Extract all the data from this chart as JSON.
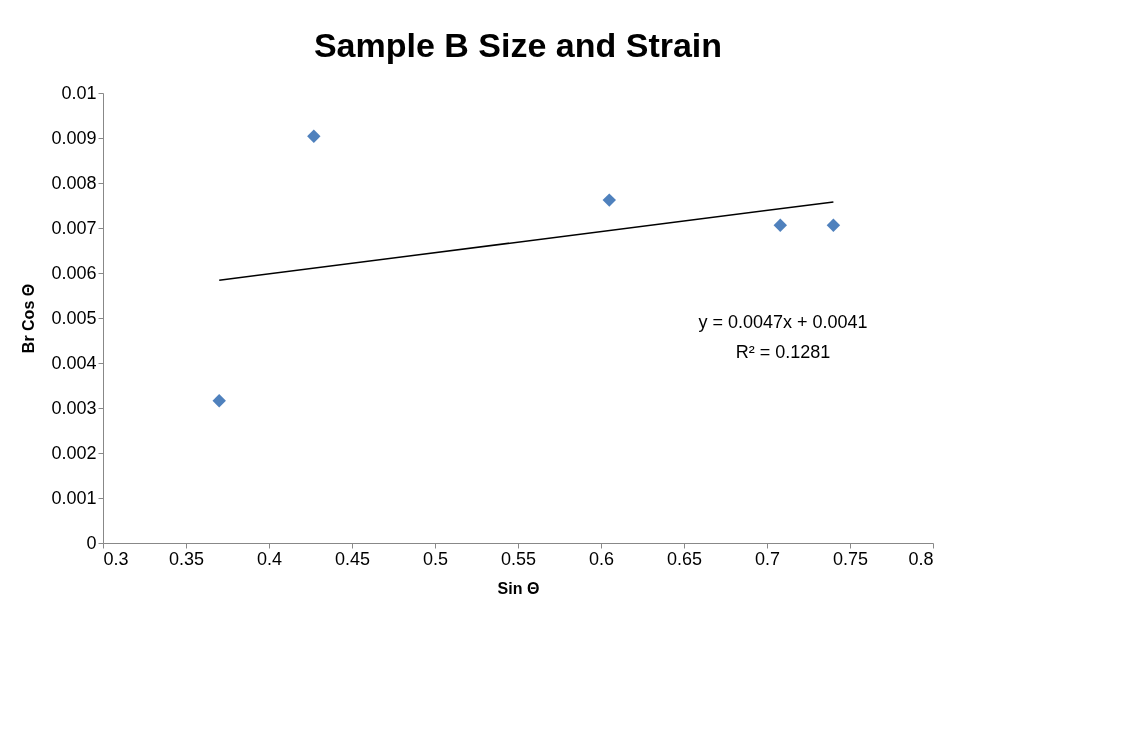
{
  "chart_data": {
    "type": "scatter",
    "title": "Sample B Size and Strain",
    "xlabel": "Sin Θ",
    "ylabel": "Br Cos Θ",
    "series": [
      {
        "color": "#4f81bd",
        "marker": "diamond",
        "x": [
          0.37,
          0.427,
          0.605,
          0.708,
          0.74
        ],
        "values": [
          0.00316,
          0.00904,
          0.00762,
          0.00706,
          0.00706
        ]
      },
      {
        "type": "line",
        "color": "#000000",
        "marker": "none",
        "x": [
          0.37,
          0.74
        ],
        "values": [
          0.00584,
          0.00758
        ]
      }
    ],
    "annotations": [
      "y = 0.0047x + 0.0041",
      "R² = 0.1281"
    ],
    "xlim": [
      0.3,
      0.8
    ],
    "xticks": [
      0.3,
      0.35,
      0.4,
      0.45,
      0.5,
      0.55,
      0.6,
      0.65,
      0.7,
      0.75,
      0.8
    ],
    "ylim": [
      0,
      0.01
    ],
    "yticks": [
      0,
      0.001,
      0.002,
      0.003,
      0.004,
      0.005,
      0.006,
      0.007,
      0.008,
      0.009,
      0.01
    ],
    "grid": false
  }
}
